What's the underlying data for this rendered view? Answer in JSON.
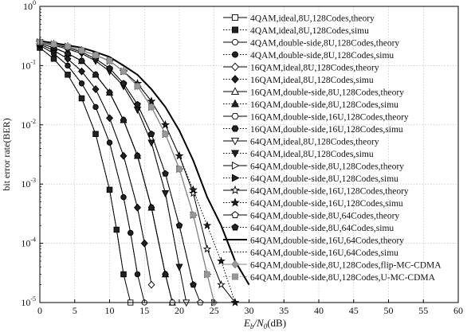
{
  "chart_data": {
    "type": "line",
    "xlabel_main": "E",
    "xlabel_sub1": "b",
    "xlabel_mid": "/N",
    "xlabel_sub2": "0",
    "xlabel_unit": "(dB)",
    "ylabel": "bit error rate(BER)",
    "xlim": [
      0,
      60
    ],
    "ylim": [
      1e-05,
      1
    ],
    "yscale": "log",
    "grid": true,
    "legend_position": "top-right",
    "xticks": [
      0,
      5,
      10,
      15,
      20,
      25,
      30,
      35,
      40,
      45,
      50,
      55,
      60
    ],
    "yticks": [
      {
        "value": 1,
        "base": "10",
        "exp": "0"
      },
      {
        "value": 0.1,
        "base": "10",
        "exp": "-1"
      },
      {
        "value": 0.01,
        "base": "10",
        "exp": "-2"
      },
      {
        "value": 0.001,
        "base": "10",
        "exp": "-3"
      },
      {
        "value": 0.0001,
        "base": "10",
        "exp": "-4"
      },
      {
        "value": 1e-05,
        "base": "10",
        "exp": "-5"
      }
    ],
    "series": [
      {
        "name": "4QAM,ideal,8U,128Codes,theory",
        "line": "solid",
        "marker": "square-open",
        "x": [
          0,
          2,
          4,
          6,
          8,
          10,
          11,
          12,
          13
        ],
        "y": [
          0.2,
          0.13,
          0.07,
          0.028,
          0.007,
          0.0008,
          0.00017,
          3e-05,
          1e-05
        ]
      },
      {
        "name": "4QAM,ideal,8U,128Codes,simu",
        "line": "dotted",
        "marker": "square-filled",
        "x": [
          0,
          2,
          4,
          6,
          8,
          10,
          11,
          12
        ],
        "y": [
          0.2,
          0.13,
          0.07,
          0.028,
          0.007,
          0.0008,
          0.00017,
          3e-05
        ]
      },
      {
        "name": "4QAM,double-side,8U,128Codes,theory",
        "line": "solid",
        "marker": "circle-open",
        "x": [
          0,
          2,
          4,
          6,
          8,
          10,
          12,
          13,
          14,
          15
        ],
        "y": [
          0.22,
          0.16,
          0.1,
          0.05,
          0.02,
          0.005,
          0.0006,
          0.00015,
          3e-05,
          1e-05
        ]
      },
      {
        "name": "4QAM,double-side,8U,128Codes,simu",
        "line": "dotted",
        "marker": "circle-filled",
        "x": [
          0,
          2,
          4,
          6,
          8,
          10,
          12,
          13,
          14
        ],
        "y": [
          0.22,
          0.16,
          0.1,
          0.05,
          0.02,
          0.005,
          0.0006,
          0.00015,
          3e-05
        ]
      },
      {
        "name": "16QAM,ideal,8U,128Codes,theory",
        "line": "solid",
        "marker": "diamond-open",
        "x": [
          0,
          2,
          4,
          6,
          8,
          10,
          12,
          14,
          15,
          16
        ],
        "y": [
          0.23,
          0.18,
          0.13,
          0.08,
          0.04,
          0.013,
          0.003,
          0.0004,
          0.0001,
          2e-05
        ]
      },
      {
        "name": "16QAM,ideal,8U,128Codes,simu",
        "line": "dotted",
        "marker": "diamond-filled",
        "x": [
          0,
          2,
          4,
          6,
          8,
          10,
          12,
          14,
          15
        ],
        "y": [
          0.23,
          0.18,
          0.13,
          0.08,
          0.04,
          0.013,
          0.003,
          0.0004,
          0.0001
        ]
      },
      {
        "name": "16QAM,double-side,8U,128Codes,theory",
        "line": "solid",
        "marker": "triangle-up-open",
        "x": [
          0,
          2,
          4,
          6,
          8,
          10,
          12,
          14,
          16,
          18,
          19
        ],
        "y": [
          0.24,
          0.2,
          0.16,
          0.12,
          0.07,
          0.035,
          0.012,
          0.003,
          0.0004,
          3e-05,
          1e-05
        ]
      },
      {
        "name": "16QAM,double-side,8U,128Codes,simu",
        "line": "dotted",
        "marker": "triangle-up-filled",
        "x": [
          0,
          2,
          4,
          6,
          8,
          10,
          12,
          14,
          16,
          18
        ],
        "y": [
          0.24,
          0.2,
          0.16,
          0.12,
          0.07,
          0.035,
          0.012,
          0.003,
          0.0004,
          3e-05
        ]
      },
      {
        "name": "16QAM,double-side,16U,128Codes,theory",
        "line": "solid",
        "marker": "hexagon-open",
        "x": [
          0,
          2,
          4,
          6,
          8,
          10,
          12,
          14,
          16,
          18,
          19
        ],
        "y": [
          0.24,
          0.2,
          0.16,
          0.12,
          0.07,
          0.035,
          0.012,
          0.003,
          0.0004,
          3e-05,
          1e-05
        ]
      },
      {
        "name": "16QAM,double-side,16U,128Codes,simu",
        "line": "dotted",
        "marker": "hexagon-filled",
        "x": [
          0,
          2,
          4,
          6,
          8,
          10,
          12,
          14,
          16,
          18
        ],
        "y": [
          0.24,
          0.2,
          0.16,
          0.12,
          0.07,
          0.035,
          0.012,
          0.003,
          0.0004,
          3e-05
        ]
      },
      {
        "name": "64QAM,ideal,8U,128Codes,theory",
        "line": "solid",
        "marker": "triangle-down-open",
        "x": [
          0,
          2,
          4,
          6,
          8,
          10,
          12,
          14,
          16,
          18,
          20,
          21
        ],
        "y": [
          0.25,
          0.22,
          0.19,
          0.16,
          0.12,
          0.08,
          0.045,
          0.018,
          0.005,
          0.0007,
          4e-05,
          1e-05
        ]
      },
      {
        "name": "64QAM,ideal,8U,128Codes,simu",
        "line": "dotted",
        "marker": "triangle-down-filled",
        "x": [
          0,
          2,
          4,
          6,
          8,
          10,
          12,
          14,
          16,
          18,
          20
        ],
        "y": [
          0.25,
          0.22,
          0.19,
          0.16,
          0.12,
          0.08,
          0.045,
          0.018,
          0.005,
          0.0007,
          4e-05
        ]
      },
      {
        "name": "64QAM,double-side,8U,128Codes,theory",
        "line": "solid",
        "marker": "triangle-right-open",
        "x": [
          0,
          2,
          4,
          6,
          8,
          10,
          12,
          14,
          16,
          18,
          20,
          22,
          24,
          25
        ],
        "y": [
          0.25,
          0.23,
          0.21,
          0.18,
          0.15,
          0.12,
          0.08,
          0.045,
          0.02,
          0.007,
          0.0018,
          0.0003,
          3e-05,
          1e-05
        ]
      },
      {
        "name": "64QAM,double-side,8U,128Codes,simu",
        "line": "dotted",
        "marker": "triangle-right-filled",
        "x": [
          0,
          2,
          4,
          6,
          8,
          10,
          12,
          14,
          16,
          18,
          20,
          22,
          24
        ],
        "y": [
          0.25,
          0.23,
          0.21,
          0.18,
          0.15,
          0.12,
          0.08,
          0.045,
          0.02,
          0.007,
          0.0018,
          0.0003,
          3e-05
        ]
      },
      {
        "name": "64QAM,double-side,16U,128Codes,theory",
        "line": "solid",
        "marker": "star-open",
        "x": [
          0,
          2,
          4,
          6,
          8,
          10,
          12,
          14,
          16,
          18,
          20,
          22,
          24,
          26,
          28
        ],
        "y": [
          0.25,
          0.23,
          0.21,
          0.18,
          0.15,
          0.12,
          0.08,
          0.05,
          0.025,
          0.01,
          0.003,
          0.0007,
          8e-05,
          2e-05,
          1e-05
        ]
      },
      {
        "name": "64QAM,double-side,16U,128Codes,simu",
        "line": "dotted",
        "marker": "star-filled",
        "x": [
          0,
          2,
          4,
          6,
          8,
          10,
          12,
          14,
          16,
          18,
          20,
          22,
          24,
          26,
          28
        ],
        "y": [
          0.25,
          0.23,
          0.21,
          0.18,
          0.15,
          0.12,
          0.08,
          0.05,
          0.025,
          0.01,
          0.003,
          0.0008,
          0.0002,
          5e-05,
          1e-05
        ]
      },
      {
        "name": "64QAM,double-side,8U,64Codes,theory",
        "line": "solid",
        "marker": "pentagon-open",
        "x": [
          0,
          2,
          4,
          6,
          8,
          10,
          12,
          14,
          16,
          18,
          20,
          22,
          23
        ],
        "y": [
          0.25,
          0.23,
          0.2,
          0.17,
          0.13,
          0.09,
          0.05,
          0.022,
          0.007,
          0.0015,
          0.0002,
          2e-05,
          1e-05
        ]
      },
      {
        "name": "64QAM,double-side,8U,64Codes,simu",
        "line": "dotted",
        "marker": "pentagon-filled",
        "x": [
          0,
          2,
          4,
          6,
          8,
          10,
          12,
          14,
          16,
          18,
          20,
          22
        ],
        "y": [
          0.25,
          0.23,
          0.2,
          0.17,
          0.13,
          0.09,
          0.05,
          0.022,
          0.007,
          0.0015,
          0.0002,
          2e-05
        ]
      },
      {
        "name": "64QAM,double-side,16U,64Codes,theory",
        "line": "solid-thick",
        "marker": "none",
        "x": [
          0,
          2,
          4,
          6,
          8,
          10,
          12,
          14,
          16,
          18,
          20,
          22,
          24,
          26,
          28,
          30
        ],
        "y": [
          0.26,
          0.24,
          0.22,
          0.2,
          0.17,
          0.14,
          0.1,
          0.07,
          0.04,
          0.02,
          0.008,
          0.0025,
          0.0006,
          0.0002,
          5e-05,
          2e-05
        ]
      },
      {
        "name": "64QAM,double-side,16U,64Codes,simu",
        "line": "dotted",
        "marker": "x-mark",
        "x": [
          0,
          2,
          4,
          6,
          8,
          10,
          12,
          14,
          16,
          18,
          20,
          22,
          24,
          26,
          28,
          30
        ],
        "y": [
          0.26,
          0.24,
          0.22,
          0.2,
          0.17,
          0.14,
          0.1,
          0.07,
          0.04,
          0.02,
          0.008,
          0.0025,
          0.0006,
          0.0002,
          5e-05,
          2e-05
        ]
      },
      {
        "name": "64QAM,double-side,8U,128Codes,flip-MC-CDMA",
        "line": "solid-gray",
        "marker": "diamond-gray",
        "x": [
          0,
          2,
          4,
          6,
          8,
          10,
          12,
          14,
          16,
          18,
          20,
          22,
          24,
          25
        ],
        "y": [
          0.25,
          0.23,
          0.21,
          0.18,
          0.15,
          0.12,
          0.08,
          0.045,
          0.02,
          0.007,
          0.0018,
          0.0003,
          3e-05,
          1e-05
        ]
      },
      {
        "name": "64QAM,double-side,8U,128Codes,U-MC-CDMA",
        "line": "dotted-gray",
        "marker": "square-gray",
        "x": [
          0,
          2,
          4,
          6,
          8,
          10,
          12,
          14,
          16,
          18,
          20,
          22,
          24
        ],
        "y": [
          0.25,
          0.23,
          0.21,
          0.18,
          0.15,
          0.12,
          0.08,
          0.045,
          0.02,
          0.007,
          0.0018,
          0.0003,
          3e-05
        ]
      }
    ]
  }
}
